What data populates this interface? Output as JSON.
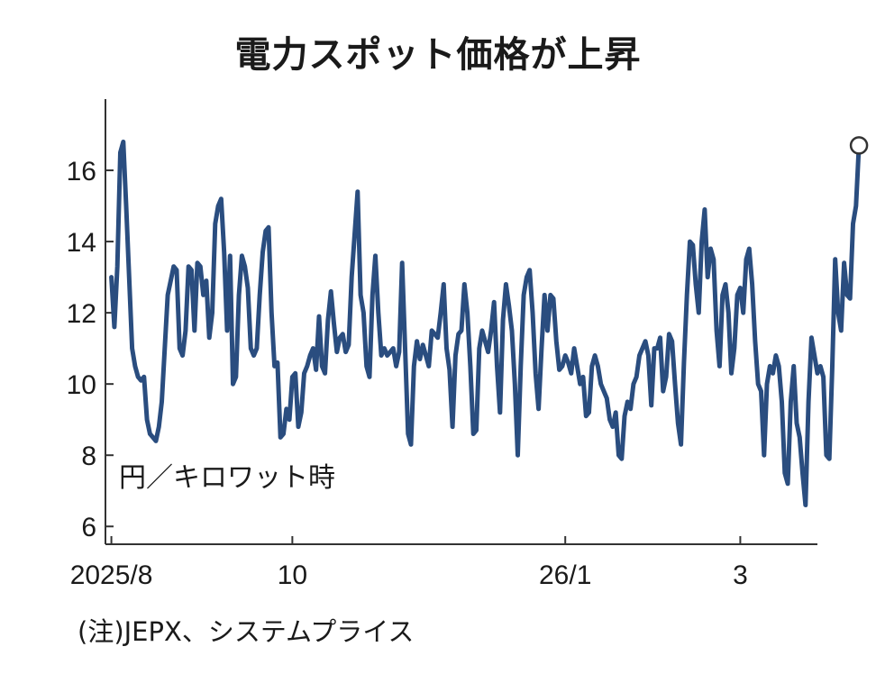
{
  "chart_data": {
    "type": "line",
    "title": "電力スポット価格が上昇",
    "unit": "円／キロワット時",
    "note": "(注)JEPX、システムプライス",
    "ylim": [
      5.5,
      18
    ],
    "yticks": [
      "6",
      "8",
      "10",
      "12",
      "14",
      "16"
    ],
    "xticks": [
      {
        "label": "2025/8",
        "x": 0
      },
      {
        "label": "10",
        "x": 61
      },
      {
        "label": "26/1",
        "x": 153
      },
      {
        "label": "3",
        "x": 212
      }
    ],
    "xlim": [
      -2,
      238
    ],
    "grid": false,
    "series": [
      {
        "color": "#2a4d7f",
        "end_marker": "open-circle",
        "values": [
          13.0,
          11.6,
          13.3,
          16.5,
          16.8,
          15.0,
          13.0,
          11.0,
          10.5,
          10.2,
          10.1,
          10.2,
          9.0,
          8.6,
          8.5,
          8.4,
          8.8,
          9.5,
          11.0,
          12.5,
          12.9,
          13.3,
          13.2,
          11.0,
          10.8,
          11.5,
          13.3,
          13.2,
          11.5,
          13.4,
          13.3,
          12.5,
          12.9,
          11.3,
          12.0,
          14.5,
          15.0,
          15.2,
          13.7,
          11.5,
          13.6,
          10.0,
          10.2,
          12.5,
          13.6,
          13.3,
          12.7,
          11.0,
          10.8,
          11.0,
          12.5,
          13.7,
          14.3,
          14.4,
          12.0,
          10.5,
          10.6,
          8.5,
          8.6,
          9.3,
          9.0,
          10.2,
          10.3,
          8.8,
          9.2,
          10.3,
          10.5,
          10.8,
          11.0,
          10.4,
          11.9,
          10.5,
          10.3,
          11.8,
          12.6,
          11.7,
          10.9,
          11.3,
          11.4,
          10.9,
          11.1,
          13.0,
          14.2,
          15.4,
          12.5,
          12.0,
          10.5,
          10.2,
          12.5,
          13.6,
          12.0,
          10.8,
          11.0,
          10.8,
          10.9,
          11.0,
          10.5,
          10.9,
          13.4,
          11.0,
          8.6,
          8.3,
          10.5,
          11.2,
          10.7,
          11.1,
          10.8,
          10.5,
          11.5,
          11.4,
          11.3,
          12.0,
          12.8,
          11.0,
          10.4,
          8.8,
          10.8,
          11.4,
          11.5,
          12.8,
          12.0,
          10.5,
          8.6,
          8.7,
          11.0,
          11.5,
          11.2,
          10.9,
          11.5,
          12.3,
          10.5,
          9.2,
          11.8,
          12.8,
          12.2,
          11.5,
          10.0,
          8.0,
          10.5,
          12.5,
          13.0,
          13.2,
          12.0,
          10.3,
          9.3,
          11.0,
          12.5,
          11.5,
          12.5,
          12.4,
          11.2,
          10.4,
          10.5,
          10.8,
          10.6,
          10.3,
          11.0,
          10.5,
          10.0,
          10.2,
          9.1,
          9.2,
          10.5,
          10.8,
          10.5,
          10.0,
          9.8,
          9.6,
          9.0,
          8.8,
          9.2,
          8.0,
          7.9,
          9.1,
          9.5,
          9.3,
          10.0,
          10.2,
          10.8,
          11.0,
          11.2,
          10.8,
          9.4,
          11.0,
          11.0,
          11.3,
          9.8,
          10.2,
          11.4,
          11.2,
          10.0,
          8.9,
          8.3,
          10.6,
          12.5,
          14.0,
          13.9,
          12.8,
          12.0,
          14.0,
          14.9,
          13.0,
          13.8,
          13.5,
          11.5,
          10.5,
          12.5,
          12.8,
          12.0,
          10.3,
          11.0,
          12.5,
          12.7,
          12.0,
          13.5,
          13.8,
          12.8,
          11.2,
          10.0,
          9.8,
          8.0,
          10.0,
          10.5,
          10.3,
          10.8,
          10.5,
          9.5,
          7.5,
          7.2,
          9.5,
          10.5,
          8.9,
          8.5,
          7.5,
          6.6,
          9.5,
          11.3,
          10.8,
          10.3,
          10.5,
          10.2,
          8.0,
          7.9,
          10.5,
          13.5,
          12.0,
          11.5,
          13.4,
          12.5,
          12.4,
          14.5,
          15.0,
          16.7
        ]
      }
    ]
  }
}
